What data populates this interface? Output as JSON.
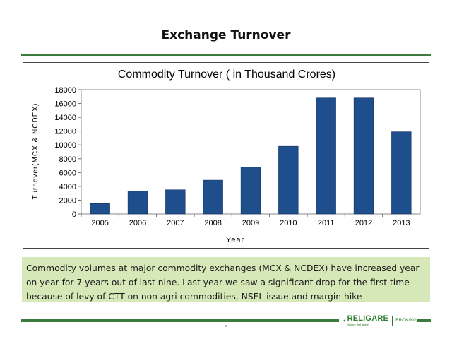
{
  "slide": {
    "title": "Exchange Turnover",
    "note": "Commodity volumes at major commodity exchanges (MCX & NCDEX) have increased year on year for 7 years out of last nine. Last year we saw a significant drop for the first time because of levy of CTT on non agri commodities, NSEL issue and margin hike",
    "page_number": "8"
  },
  "logo": {
    "name": "RELIGARE",
    "tagline": "Values that shine",
    "division": "BROKING"
  },
  "colors": {
    "bar": "#1f4e8c",
    "accent_green": "#3d7a3d",
    "note_bg": "#d6e7b8"
  },
  "chart_data": {
    "type": "bar",
    "title": "Commodity Turnover ( in Thousand Crores)",
    "xlabel": "Year",
    "ylabel": "Turnover(MCX & NCDEX)",
    "categories": [
      "2005",
      "2006",
      "2007",
      "2008",
      "2009",
      "2010",
      "2011",
      "2012",
      "2013"
    ],
    "values": [
      1500,
      3300,
      3500,
      4900,
      6800,
      9800,
      16800,
      16800,
      11900
    ],
    "ylim": [
      0,
      18000
    ],
    "yticks": [
      "0",
      "2000",
      "4000",
      "6000",
      "8000",
      "10000",
      "12000",
      "14000",
      "16000",
      "18000"
    ],
    "grid": false,
    "legend": "none"
  }
}
